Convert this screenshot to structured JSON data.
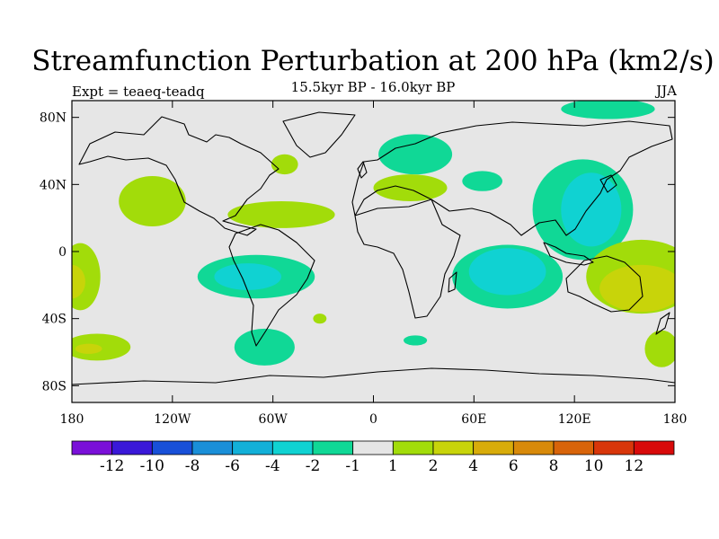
{
  "title": "Streamfunction Perturbation at 200 hPa (km2/s)",
  "subtitle": "15.5kyr BP - 16.0kyr BP",
  "left_label": "Expt = teaeq-teadq",
  "right_label": "JJA",
  "chart_data": {
    "type": "contour_map",
    "projection": "cylindrical equidistant",
    "lon_range": [
      -180,
      180
    ],
    "lat_range": [
      -90,
      90
    ],
    "x_ticks": [
      {
        "lon": -180,
        "label": "180"
      },
      {
        "lon": -120,
        "label": "120W"
      },
      {
        "lon": -60,
        "label": "60W"
      },
      {
        "lon": 0,
        "label": "0"
      },
      {
        "lon": 60,
        "label": "60E"
      },
      {
        "lon": 120,
        "label": "120E"
      },
      {
        "lon": 180,
        "label": "180"
      }
    ],
    "y_ticks": [
      {
        "lat": 80,
        "label": "80N"
      },
      {
        "lat": 40,
        "label": "40N"
      },
      {
        "lat": 0,
        "label": "0"
      },
      {
        "lat": -40,
        "label": "40S"
      },
      {
        "lat": -80,
        "label": "80S"
      }
    ],
    "colorbar": {
      "colors": [
        "#7a10d8",
        "#3a18d8",
        "#1850d8",
        "#1a8fd8",
        "#12b0d8",
        "#10d2d2",
        "#10d896",
        "#e5e5e5",
        "#a2dc0a",
        "#c8d40a",
        "#d8ac0a",
        "#d88a0a",
        "#d8640a",
        "#d8360a",
        "#d80a0a"
      ],
      "labels": [
        "-12",
        "-10",
        "-8",
        "-6",
        "-4",
        "-2",
        "-1",
        "1",
        "2",
        "4",
        "6",
        "8",
        "10",
        "12"
      ]
    },
    "regions": [
      {
        "level": "-1 to -2",
        "center_lon": 140,
        "center_lat": 85,
        "rx_deg": 28,
        "ry_deg": 6
      },
      {
        "level": "-1 to -2",
        "center_lon": 25,
        "center_lat": 58,
        "rx_deg": 22,
        "ry_deg": 12
      },
      {
        "level": "-1 to -2",
        "center_lon": 65,
        "center_lat": 42,
        "rx_deg": 12,
        "ry_deg": 6
      },
      {
        "level": "-1 to -2",
        "center_lon": 125,
        "center_lat": 25,
        "rx_deg": 30,
        "ry_deg": 30
      },
      {
        "level": "-2 to -4",
        "center_lon": 130,
        "center_lat": 25,
        "rx_deg": 18,
        "ry_deg": 22
      },
      {
        "level": "-1 to -2",
        "center_lon": -70,
        "center_lat": -15,
        "rx_deg": 35,
        "ry_deg": 13
      },
      {
        "level": "-2 to -4",
        "center_lon": -75,
        "center_lat": -15,
        "rx_deg": 20,
        "ry_deg": 8
      },
      {
        "level": "-1 to -2",
        "center_lon": 80,
        "center_lat": -15,
        "rx_deg": 33,
        "ry_deg": 19
      },
      {
        "level": "-2 to -4",
        "center_lon": 80,
        "center_lat": -12,
        "rx_deg": 23,
        "ry_deg": 14
      },
      {
        "level": "-1 to -2",
        "center_lon": -65,
        "center_lat": -57,
        "rx_deg": 18,
        "ry_deg": 11
      },
      {
        "level": "-1 to -2",
        "center_lon": 25,
        "center_lat": -53,
        "rx_deg": 7,
        "ry_deg": 3
      },
      {
        "level": "1 to 2",
        "center_lon": -132,
        "center_lat": 30,
        "rx_deg": 20,
        "ry_deg": 15
      },
      {
        "level": "1 to 2",
        "center_lon": -55,
        "center_lat": 22,
        "rx_deg": 32,
        "ry_deg": 8
      },
      {
        "level": "1 to 2",
        "center_lon": -53,
        "center_lat": 52,
        "rx_deg": 8,
        "ry_deg": 6
      },
      {
        "level": "1 to 2",
        "center_lon": 22,
        "center_lat": 38,
        "rx_deg": 22,
        "ry_deg": 8
      },
      {
        "level": "1 to 2",
        "center_lon": 160,
        "center_lat": -15,
        "rx_deg": 33,
        "ry_deg": 22
      },
      {
        "level": "2 to 4",
        "center_lon": 160,
        "center_lat": -22,
        "rx_deg": 25,
        "ry_deg": 14
      },
      {
        "level": "1 to 2",
        "center_lon": -175,
        "center_lat": -15,
        "rx_deg": 12,
        "ry_deg": 20
      },
      {
        "level": "2 to 4",
        "center_lon": -180,
        "center_lat": -18,
        "rx_deg": 8,
        "ry_deg": 10
      },
      {
        "level": "1 to 2",
        "center_lon": -165,
        "center_lat": -57,
        "rx_deg": 20,
        "ry_deg": 8
      },
      {
        "level": "2 to 4",
        "center_lon": -170,
        "center_lat": -58,
        "rx_deg": 8,
        "ry_deg": 3
      },
      {
        "level": "1 to 2",
        "center_lon": 172,
        "center_lat": -58,
        "rx_deg": 10,
        "ry_deg": 11
      },
      {
        "level": "1 to 2",
        "center_lon": -32,
        "center_lat": -40,
        "rx_deg": 4,
        "ry_deg": 3
      }
    ]
  }
}
